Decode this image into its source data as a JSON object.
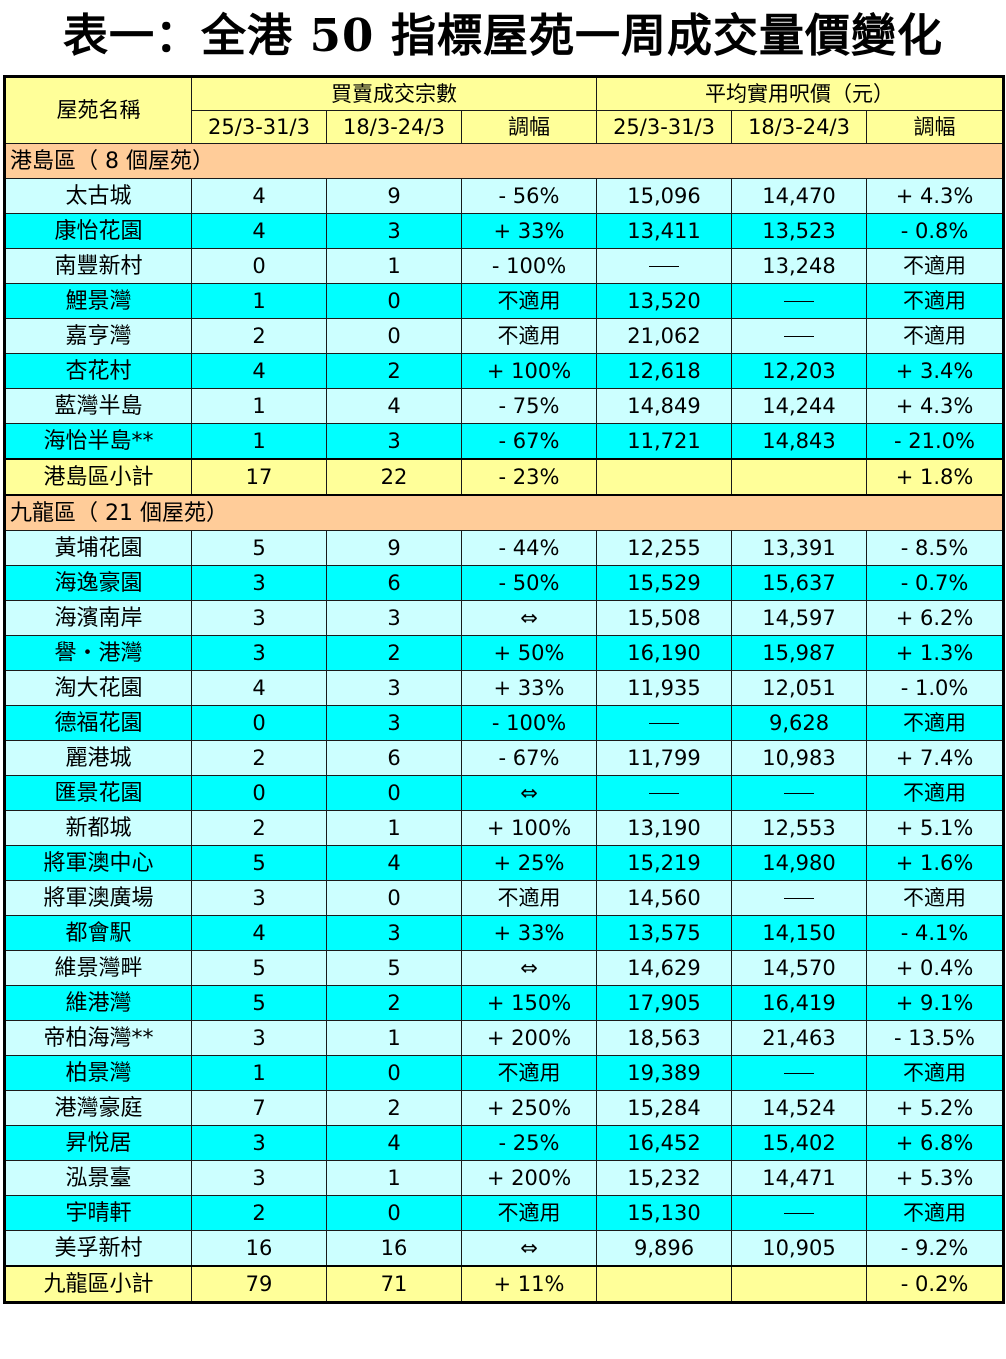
{
  "title": "表一：全港 50 指標屋苑一周成交量價變化",
  "header": {
    "estate_name": "屋苑名稱",
    "transactions_group": "買賣成交宗數",
    "price_group": "平均實用呎價（元）",
    "period_current": "25/3-31/3",
    "period_previous": "18/3-24/3",
    "change": "調幅"
  },
  "sections": [
    {
      "region": "港島區（ 8 個屋苑）",
      "rows": [
        {
          "name": "太古城",
          "tx_cur": "4",
          "tx_prev": "9",
          "tx_chg": "- 56%",
          "px_cur": "15,096",
          "px_prev": "14,470",
          "px_chg": "+ 4.3%"
        },
        {
          "name": "康怡花園",
          "tx_cur": "4",
          "tx_prev": "3",
          "tx_chg": "+ 33%",
          "px_cur": "13,411",
          "px_prev": "13,523",
          "px_chg": "- 0.8%"
        },
        {
          "name": "南豐新村",
          "tx_cur": "0",
          "tx_prev": "1",
          "tx_chg": "- 100%",
          "px_cur": "",
          "px_prev": "13,248",
          "px_chg": "不適用"
        },
        {
          "name": "鯉景灣",
          "tx_cur": "1",
          "tx_prev": "0",
          "tx_chg": "不適用",
          "px_cur": "13,520",
          "px_prev": "",
          "px_chg": "不適用"
        },
        {
          "name": "嘉亨灣",
          "tx_cur": "2",
          "tx_prev": "0",
          "tx_chg": "不適用",
          "px_cur": "21,062",
          "px_prev": "",
          "px_chg": "不適用"
        },
        {
          "name": "杏花村",
          "tx_cur": "4",
          "tx_prev": "2",
          "tx_chg": "+ 100%",
          "px_cur": "12,618",
          "px_prev": "12,203",
          "px_chg": "+ 3.4%"
        },
        {
          "name": "藍灣半島",
          "tx_cur": "1",
          "tx_prev": "4",
          "tx_chg": "- 75%",
          "px_cur": "14,849",
          "px_prev": "14,244",
          "px_chg": "+ 4.3%"
        },
        {
          "name": "海怡半島**",
          "tx_cur": "1",
          "tx_prev": "3",
          "tx_chg": "- 67%",
          "px_cur": "11,721",
          "px_prev": "14,843",
          "px_chg": "- 21.0%"
        }
      ],
      "subtotal": {
        "name": "港島區小計",
        "tx_cur": "17",
        "tx_prev": "22",
        "tx_chg": "- 23%",
        "px_cur": "",
        "px_prev": "",
        "px_chg": "+ 1.8%"
      }
    },
    {
      "region": "九龍區（ 21 個屋苑）",
      "rows": [
        {
          "name": "黃埔花園",
          "tx_cur": "5",
          "tx_prev": "9",
          "tx_chg": "- 44%",
          "px_cur": "12,255",
          "px_prev": "13,391",
          "px_chg": "- 8.5%"
        },
        {
          "name": "海逸豪園",
          "tx_cur": "3",
          "tx_prev": "6",
          "tx_chg": "- 50%",
          "px_cur": "15,529",
          "px_prev": "15,637",
          "px_chg": "- 0.7%"
        },
        {
          "name": "海濱南岸",
          "tx_cur": "3",
          "tx_prev": "3",
          "tx_chg": "⇔",
          "px_cur": "15,508",
          "px_prev": "14,597",
          "px_chg": "+ 6.2%"
        },
        {
          "name": "譽・港灣",
          "tx_cur": "3",
          "tx_prev": "2",
          "tx_chg": "+ 50%",
          "px_cur": "16,190",
          "px_prev": "15,987",
          "px_chg": "+ 1.3%"
        },
        {
          "name": "淘大花園",
          "tx_cur": "4",
          "tx_prev": "3",
          "tx_chg": "+ 33%",
          "px_cur": "11,935",
          "px_prev": "12,051",
          "px_chg": "- 1.0%"
        },
        {
          "name": "德福花園",
          "tx_cur": "0",
          "tx_prev": "3",
          "tx_chg": "- 100%",
          "px_cur": "",
          "px_prev": "9,628",
          "px_chg": "不適用"
        },
        {
          "name": "麗港城",
          "tx_cur": "2",
          "tx_prev": "6",
          "tx_chg": "- 67%",
          "px_cur": "11,799",
          "px_prev": "10,983",
          "px_chg": "+ 7.4%"
        },
        {
          "name": "匯景花園",
          "tx_cur": "0",
          "tx_prev": "0",
          "tx_chg": "⇔",
          "px_cur": "",
          "px_prev": "",
          "px_chg": "不適用"
        },
        {
          "name": "新都城",
          "tx_cur": "2",
          "tx_prev": "1",
          "tx_chg": "+ 100%",
          "px_cur": "13,190",
          "px_prev": "12,553",
          "px_chg": "+ 5.1%"
        },
        {
          "name": "將軍澳中心",
          "tx_cur": "5",
          "tx_prev": "4",
          "tx_chg": "+ 25%",
          "px_cur": "15,219",
          "px_prev": "14,980",
          "px_chg": "+ 1.6%"
        },
        {
          "name": "將軍澳廣場",
          "tx_cur": "3",
          "tx_prev": "0",
          "tx_chg": "不適用",
          "px_cur": "14,560",
          "px_prev": "",
          "px_chg": "不適用"
        },
        {
          "name": "都會駅",
          "tx_cur": "4",
          "tx_prev": "3",
          "tx_chg": "+ 33%",
          "px_cur": "13,575",
          "px_prev": "14,150",
          "px_chg": "- 4.1%"
        },
        {
          "name": "維景灣畔",
          "tx_cur": "5",
          "tx_prev": "5",
          "tx_chg": "⇔",
          "px_cur": "14,629",
          "px_prev": "14,570",
          "px_chg": "+ 0.4%"
        },
        {
          "name": "維港灣",
          "tx_cur": "5",
          "tx_prev": "2",
          "tx_chg": "+ 150%",
          "px_cur": "17,905",
          "px_prev": "16,419",
          "px_chg": "+ 9.1%"
        },
        {
          "name": "帝柏海灣**",
          "tx_cur": "3",
          "tx_prev": "1",
          "tx_chg": "+ 200%",
          "px_cur": "18,563",
          "px_prev": "21,463",
          "px_chg": "- 13.5%"
        },
        {
          "name": "柏景灣",
          "tx_cur": "1",
          "tx_prev": "0",
          "tx_chg": "不適用",
          "px_cur": "19,389",
          "px_prev": "",
          "px_chg": "不適用"
        },
        {
          "name": "港灣豪庭",
          "tx_cur": "7",
          "tx_prev": "2",
          "tx_chg": "+ 250%",
          "px_cur": "15,284",
          "px_prev": "14,524",
          "px_chg": "+ 5.2%"
        },
        {
          "name": "昇悅居",
          "tx_cur": "3",
          "tx_prev": "4",
          "tx_chg": "- 25%",
          "px_cur": "16,452",
          "px_prev": "15,402",
          "px_chg": "+ 6.8%"
        },
        {
          "name": "泓景臺",
          "tx_cur": "3",
          "tx_prev": "1",
          "tx_chg": "+ 200%",
          "px_cur": "15,232",
          "px_prev": "14,471",
          "px_chg": "+ 5.3%"
        },
        {
          "name": "宇晴軒",
          "tx_cur": "2",
          "tx_prev": "0",
          "tx_chg": "不適用",
          "px_cur": "15,130",
          "px_prev": "",
          "px_chg": "不適用"
        },
        {
          "name": "美孚新村",
          "tx_cur": "16",
          "tx_prev": "16",
          "tx_chg": "⇔",
          "px_cur": "9,896",
          "px_prev": "10,905",
          "px_chg": "- 9.2%"
        }
      ],
      "subtotal": {
        "name": "九龍區小計",
        "tx_cur": "79",
        "tx_prev": "71",
        "tx_chg": "+ 11%",
        "px_cur": "",
        "px_prev": "",
        "px_chg": "- 0.2%"
      }
    }
  ]
}
